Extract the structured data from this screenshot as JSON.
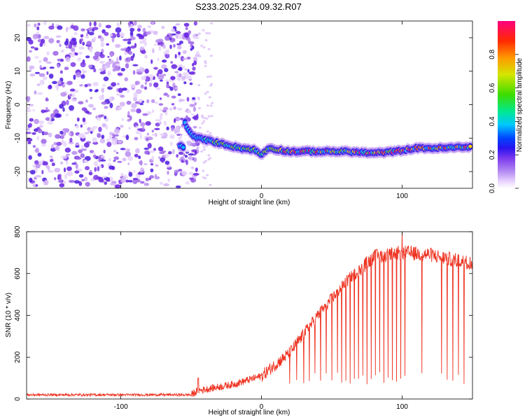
{
  "title": "S233.2025.234.09.32.R07",
  "chart_data": [
    {
      "type": "heatmap",
      "name": "spectrogram",
      "xlabel": "Height of straight line (km)",
      "ylabel": "Frequency (Hz)",
      "xlim": [
        -167,
        150
      ],
      "ylim": [
        -25,
        25
      ],
      "xticks": [
        -100,
        0,
        100
      ],
      "yticks": [
        -20,
        -10,
        0,
        10,
        20
      ],
      "colorbar": {
        "label": "Normalized spectral amplitude",
        "range": [
          0.0,
          1.0
        ],
        "ticks": [
          "0.0",
          "0.2",
          "0.4",
          "0.6",
          "0.8"
        ],
        "colors": [
          "#ffffff",
          "#e9d5ff",
          "#b58cf2",
          "#7c3aed",
          "#2b13f0",
          "#0044ff",
          "#00c8ff",
          "#00e890",
          "#3ddc00",
          "#d4e600",
          "#ff9900",
          "#ff2a00",
          "#ff007f"
        ]
      },
      "ridge": [
        {
          "x": -55,
          "f": -5
        },
        {
          "x": -50,
          "f": -9
        },
        {
          "x": -45,
          "f": -10
        },
        {
          "x": -35,
          "f": -11
        },
        {
          "x": -25,
          "f": -12
        },
        {
          "x": -15,
          "f": -13
        },
        {
          "x": -5,
          "f": -13.5
        },
        {
          "x": 0,
          "f": -15
        },
        {
          "x": 5,
          "f": -13
        },
        {
          "x": 20,
          "f": -14
        },
        {
          "x": 40,
          "f": -14
        },
        {
          "x": 60,
          "f": -14
        },
        {
          "x": 80,
          "f": -14.5
        },
        {
          "x": 95,
          "f": -14
        },
        {
          "x": 110,
          "f": -13
        },
        {
          "x": 130,
          "f": -13
        },
        {
          "x": 150,
          "f": -12.5
        }
      ],
      "noise_region": [
        -167,
        -45
      ]
    },
    {
      "type": "line",
      "name": "snr",
      "xlabel": "Height of straight line (km)",
      "ylabel": "SNR (10 * v/v)",
      "xlim": [
        -167,
        150
      ],
      "ylim": [
        0,
        800
      ],
      "xticks": [
        -100,
        0,
        100
      ],
      "yticks": [
        0,
        200,
        400,
        600,
        800
      ],
      "line_color": "#ee3322",
      "envelope": [
        {
          "x": -167,
          "y": 20
        },
        {
          "x": -50,
          "y": 20
        },
        {
          "x": -45,
          "y": 40
        },
        {
          "x": -20,
          "y": 70
        },
        {
          "x": 0,
          "y": 110
        },
        {
          "x": 20,
          "y": 220
        },
        {
          "x": 40,
          "y": 400
        },
        {
          "x": 60,
          "y": 560
        },
        {
          "x": 80,
          "y": 680
        },
        {
          "x": 100,
          "y": 700
        },
        {
          "x": 120,
          "y": 690
        },
        {
          "x": 140,
          "y": 660
        },
        {
          "x": 150,
          "y": 650
        }
      ],
      "dropouts": [
        20,
        25,
        30,
        34,
        38,
        42,
        46,
        50,
        54,
        57,
        60,
        63,
        66,
        69,
        72,
        75,
        78,
        81,
        84,
        87,
        90,
        93,
        96,
        99,
        102,
        114,
        128,
        132,
        136,
        140,
        144
      ]
    }
  ]
}
